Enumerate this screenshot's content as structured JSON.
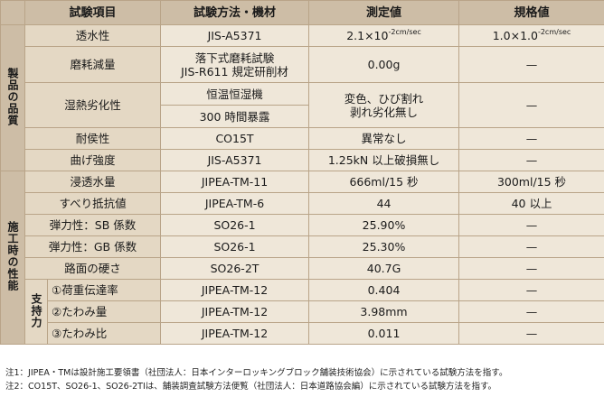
{
  "headers": {
    "item": "試験項目",
    "method": "試験方法・機材",
    "measured": "測定値",
    "standard": "規格値"
  },
  "groups": {
    "product": "製品の品質",
    "construction": "施工時の性能",
    "support": "支持力"
  },
  "rows": {
    "r1": {
      "item": "透水性",
      "method": "JIS-A5371",
      "measured_base": "2.1×10",
      "measured_sup": "-2cm/sec",
      "standard_base": "1.0×1.0",
      "standard_sup": "-2cm/sec"
    },
    "r2": {
      "item": "磨耗減量",
      "method_l1": "落下式磨耗試験",
      "method_l2": "JIS-R611 規定研削材",
      "measured": "0.00g",
      "standard": "—"
    },
    "r3": {
      "item": "湿熱劣化性",
      "method_l1": "恒温恒湿機",
      "method_l2": "300 時間暴露",
      "measured_l1": "変色、ひび割れ",
      "measured_l2": "剥れ劣化無し",
      "standard": "—"
    },
    "r4": {
      "item": "耐侯性",
      "method": "CO15T",
      "measured": "異常なし",
      "standard": "—"
    },
    "r5": {
      "item": "曲げ強度",
      "method": "JIS-A5371",
      "measured": "1.25kN 以上破損無し",
      "standard": "—"
    },
    "r6": {
      "item": "浸透水量",
      "method": "JIPEA-TM-11",
      "measured": "666ml/15 秒",
      "standard": "300ml/15 秒"
    },
    "r7": {
      "item": "すべり抵抗値",
      "method": "JIPEA-TM-6",
      "measured": "44",
      "standard": "40 以上"
    },
    "r8": {
      "item": "弾力性：SB 係数",
      "method": "SO26-1",
      "measured": "25.90%",
      "standard": "—"
    },
    "r9": {
      "item": "弾力性：GB 係数",
      "method": "SO26-1",
      "measured": "25.30%",
      "standard": "—"
    },
    "r10": {
      "item": "路面の硬さ",
      "method": "SO26-2T",
      "measured": "40.7G",
      "standard": "—"
    },
    "r11": {
      "item": "①荷重伝達率",
      "method": "JIPEA-TM-12",
      "measured": "0.404",
      "standard": "—"
    },
    "r12": {
      "item": "②たわみ量",
      "method": "JIPEA-TM-12",
      "measured": "3.98mm",
      "standard": "—"
    },
    "r13": {
      "item": "③たわみ比",
      "method": "JIPEA-TM-12",
      "measured": "0.011",
      "standard": "—"
    }
  },
  "notes": {
    "n1": "注1：JIPEA・TMは設計施工要領書（社団法人：日本インターロッキングブロック舗装技術協会）に示されている試験方法を指す。",
    "n2": "注2：CO15T、SO26-1、SO26-2TIは、舗装調査試験方法便覧（社団法人：日本道路協会編）に示されている試験方法を指す。"
  }
}
